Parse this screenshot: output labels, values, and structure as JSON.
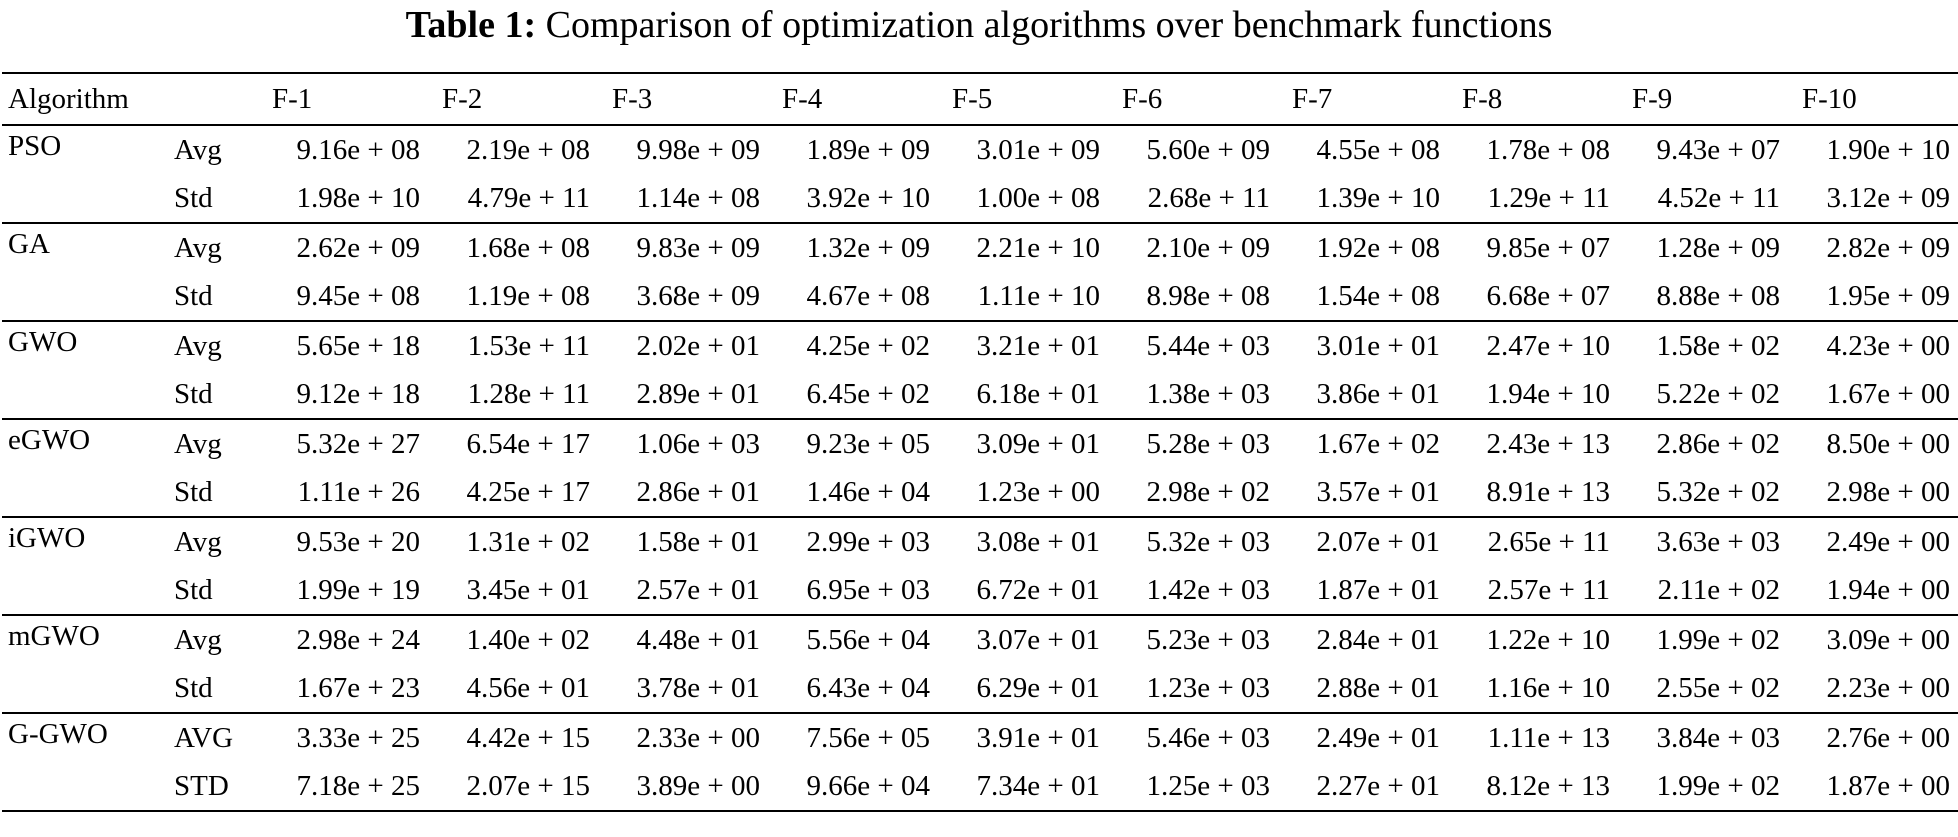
{
  "caption": {
    "label": "Table 1:",
    "text": "Comparison of optimization algorithms over benchmark functions"
  },
  "table": {
    "header_first": "Algorithm",
    "functions": [
      "F-1",
      "F-2",
      "F-3",
      "F-4",
      "F-5",
      "F-6",
      "F-7",
      "F-8",
      "F-9",
      "F-10"
    ],
    "rows": [
      {
        "algorithm": "PSO",
        "avg_label": "Avg",
        "avg": [
          "9.16e + 08",
          "2.19e + 08",
          "9.98e + 09",
          "1.89e + 09",
          "3.01e + 09",
          "5.60e + 09",
          "4.55e + 08",
          "1.78e + 08",
          "9.43e + 07",
          "1.90e + 10"
        ],
        "std_label": "Std",
        "std": [
          "1.98e + 10",
          "4.79e + 11",
          "1.14e + 08",
          "3.92e + 10",
          "1.00e + 08",
          "2.68e + 11",
          "1.39e + 10",
          "1.29e + 11",
          "4.52e + 11",
          "3.12e + 09"
        ]
      },
      {
        "algorithm": "GA",
        "avg_label": "Avg",
        "avg": [
          "2.62e + 09",
          "1.68e + 08",
          "9.83e + 09",
          "1.32e + 09",
          "2.21e + 10",
          "2.10e + 09",
          "1.92e + 08",
          "9.85e + 07",
          "1.28e + 09",
          "2.82e + 09"
        ],
        "std_label": "Std",
        "std": [
          "9.45e + 08",
          "1.19e + 08",
          "3.68e + 09",
          "4.67e + 08",
          "1.11e + 10",
          "8.98e + 08",
          "1.54e + 08",
          "6.68e + 07",
          "8.88e + 08",
          "1.95e + 09"
        ]
      },
      {
        "algorithm": "GWO",
        "avg_label": "Avg",
        "avg": [
          "5.65e + 18",
          "1.53e + 11",
          "2.02e + 01",
          "4.25e + 02",
          "3.21e + 01",
          "5.44e + 03",
          "3.01e + 01",
          "2.47e + 10",
          "1.58e + 02",
          "4.23e + 00"
        ],
        "std_label": "Std",
        "std": [
          "9.12e + 18",
          "1.28e + 11",
          "2.89e + 01",
          "6.45e + 02",
          "6.18e + 01",
          "1.38e + 03",
          "3.86e + 01",
          "1.94e + 10",
          "5.22e + 02",
          "1.67e + 00"
        ]
      },
      {
        "algorithm": "eGWO",
        "avg_label": "Avg",
        "avg": [
          "5.32e + 27",
          "6.54e + 17",
          "1.06e + 03",
          "9.23e + 05",
          "3.09e + 01",
          "5.28e + 03",
          "1.67e + 02",
          "2.43e + 13",
          "2.86e + 02",
          "8.50e + 00"
        ],
        "std_label": "Std",
        "std": [
          "1.11e + 26",
          "4.25e + 17",
          "2.86e + 01",
          "1.46e + 04",
          "1.23e + 00",
          "2.98e + 02",
          "3.57e + 01",
          "8.91e + 13",
          "5.32e + 02",
          "2.98e + 00"
        ]
      },
      {
        "algorithm": "iGWO",
        "avg_label": "Avg",
        "avg": [
          "9.53e + 20",
          "1.31e + 02",
          "1.58e + 01",
          "2.99e + 03",
          "3.08e + 01",
          "5.32e + 03",
          "2.07e + 01",
          "2.65e + 11",
          "3.63e + 03",
          "2.49e + 00"
        ],
        "std_label": "Std",
        "std": [
          "1.99e + 19",
          "3.45e + 01",
          "2.57e + 01",
          "6.95e + 03",
          "6.72e + 01",
          "1.42e + 03",
          "1.87e + 01",
          "2.57e + 11",
          "2.11e + 02",
          "1.94e + 00"
        ]
      },
      {
        "algorithm": "mGWO",
        "avg_label": "Avg",
        "avg": [
          "2.98e + 24",
          "1.40e + 02",
          "4.48e + 01",
          "5.56e + 04",
          "3.07e + 01",
          "5.23e + 03",
          "2.84e + 01",
          "1.22e + 10",
          "1.99e + 02",
          "3.09e + 00"
        ],
        "std_label": "Std",
        "std": [
          "1.67e + 23",
          "4.56e + 01",
          "3.78e + 01",
          "6.43e + 04",
          "6.29e + 01",
          "1.23e + 03",
          "2.88e + 01",
          "1.16e + 10",
          "2.55e + 02",
          "2.23e + 00"
        ]
      },
      {
        "algorithm": "G-GWO",
        "avg_label": "AVG",
        "avg": [
          "3.33e + 25",
          "4.42e + 15",
          "2.33e + 00",
          "7.56e + 05",
          "3.91e + 01",
          "5.46e + 03",
          "2.49e + 01",
          "1.11e + 13",
          "3.84e + 03",
          "2.76e + 00"
        ],
        "std_label": "STD",
        "std": [
          "7.18e + 25",
          "2.07e + 15",
          "3.89e + 00",
          "9.66e + 04",
          "7.34e + 01",
          "1.25e + 03",
          "2.27e + 01",
          "8.12e + 13",
          "1.99e + 02",
          "1.87e + 00"
        ]
      }
    ]
  }
}
